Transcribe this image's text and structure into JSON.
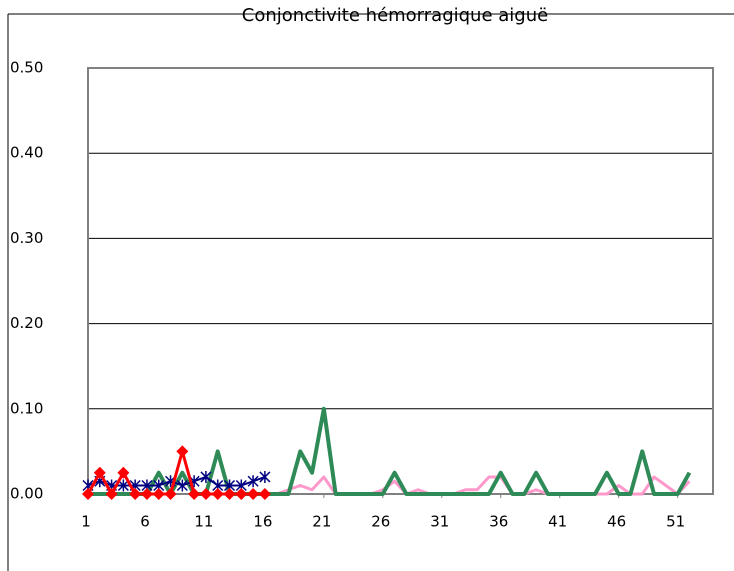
{
  "chart_data": {
    "type": "line",
    "title": "Conjonctivite hémorragique aiguë",
    "x": [
      1,
      2,
      3,
      4,
      5,
      6,
      7,
      8,
      9,
      10,
      11,
      12,
      13,
      14,
      15,
      16,
      17,
      18,
      19,
      20,
      21,
      22,
      23,
      24,
      25,
      26,
      27,
      28,
      29,
      30,
      31,
      32,
      33,
      34,
      35,
      36,
      37,
      38,
      39,
      40,
      41,
      42,
      43,
      44,
      45,
      46,
      47,
      48,
      49,
      50,
      51,
      52
    ],
    "xlim": [
      1,
      54
    ],
    "xticks": [
      1,
      6,
      11,
      16,
      21,
      26,
      31,
      36,
      41,
      46,
      51
    ],
    "ylim": [
      0,
      0.5
    ],
    "yticks": [
      {
        "value": 0,
        "label": "0.00"
      },
      {
        "value": 0.1,
        "label": "0.10"
      },
      {
        "value": 0.2,
        "label": "0.20"
      },
      {
        "value": 0.3,
        "label": "0.30"
      },
      {
        "value": 0.4,
        "label": "0.40"
      },
      {
        "value": 0.5,
        "label": "0.50"
      }
    ],
    "grid": true,
    "series": [
      {
        "color": "#ff99cc",
        "width": 3,
        "marker": "none",
        "values": [
          null,
          null,
          null,
          null,
          null,
          null,
          null,
          null,
          null,
          null,
          null,
          null,
          null,
          null,
          null,
          null,
          0,
          0.005,
          0.01,
          0.005,
          0.02,
          0,
          0,
          0,
          0,
          0.005,
          0.015,
          0,
          0.005,
          0,
          0,
          0,
          0.005,
          0.005,
          0.02,
          0.02,
          0,
          0,
          0.005,
          0,
          0,
          0,
          0,
          0,
          0,
          0.01,
          0,
          0,
          0.02,
          0.01,
          0,
          0.015
        ]
      },
      {
        "color": "#2e8b57",
        "width": 4,
        "marker": "none",
        "values": [
          0,
          0,
          0,
          0,
          0,
          0,
          0.025,
          0,
          0.025,
          0,
          0,
          0.05,
          0,
          0,
          0,
          0,
          0,
          0,
          0.05,
          0.025,
          0.1,
          0,
          0,
          0,
          0,
          0,
          0.025,
          0,
          0,
          0,
          0,
          0,
          0,
          0,
          0,
          0.025,
          0,
          0,
          0.025,
          0,
          0,
          0,
          0,
          0,
          0.025,
          0,
          0,
          0.05,
          0,
          0,
          0,
          0.025
        ]
      },
      {
        "color": "#000080",
        "width": 2,
        "marker": "star",
        "values": [
          0.01,
          0.015,
          0.01,
          0.01,
          0.01,
          0.01,
          0.01,
          0.015,
          0.01,
          0.015,
          0.02,
          0.01,
          0.01,
          0.01,
          0.015,
          0.02,
          null,
          null,
          null,
          null,
          null,
          null,
          null,
          null,
          null,
          null,
          null,
          null,
          null,
          null,
          null,
          null,
          null,
          null,
          null,
          null,
          null,
          null,
          null,
          null,
          null,
          null,
          null,
          null,
          null,
          null,
          null,
          null,
          null,
          null,
          null,
          null
        ]
      },
      {
        "color": "#ff0000",
        "width": 3,
        "marker": "diamond",
        "values": [
          0,
          0.025,
          0,
          0.025,
          0,
          0,
          0,
          0,
          0.05,
          0,
          0,
          0,
          0,
          0,
          0,
          0,
          null,
          null,
          null,
          null,
          null,
          null,
          null,
          null,
          null,
          null,
          null,
          null,
          null,
          null,
          null,
          null,
          null,
          null,
          null,
          null,
          null,
          null,
          null,
          null,
          null,
          null,
          null,
          null,
          null,
          null,
          null,
          null,
          null,
          null,
          null,
          null
        ]
      }
    ]
  }
}
